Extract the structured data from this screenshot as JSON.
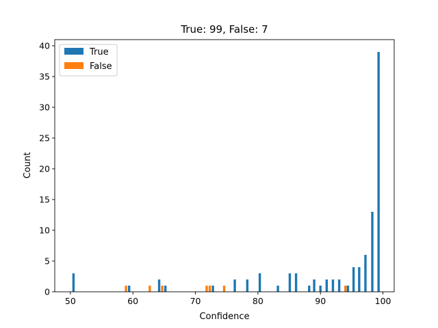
{
  "chart_data": {
    "type": "bar",
    "title": "True: 99, False: 7",
    "xlabel": "Confidence",
    "ylabel": "Count",
    "xlim": [
      47.5,
      101.8
    ],
    "ylim": [
      0,
      41
    ],
    "xticks": [
      50,
      60,
      70,
      80,
      90,
      100
    ],
    "yticks": [
      0,
      5,
      10,
      15,
      20,
      25,
      30,
      35,
      40
    ],
    "grid": false,
    "legend_position": "upper-left",
    "series": [
      {
        "name": "True",
        "color": "#1f77b4",
        "points": [
          {
            "x": 50.5,
            "y": 3
          },
          {
            "x": 59.4,
            "y": 1
          },
          {
            "x": 64.2,
            "y": 2
          },
          {
            "x": 65.2,
            "y": 1
          },
          {
            "x": 72.8,
            "y": 1
          },
          {
            "x": 76.3,
            "y": 2
          },
          {
            "x": 78.3,
            "y": 2
          },
          {
            "x": 80.3,
            "y": 3
          },
          {
            "x": 83.2,
            "y": 1
          },
          {
            "x": 85.1,
            "y": 3
          },
          {
            "x": 86.1,
            "y": 3
          },
          {
            "x": 88.2,
            "y": 1
          },
          {
            "x": 89.0,
            "y": 2
          },
          {
            "x": 90.0,
            "y": 1
          },
          {
            "x": 91.0,
            "y": 2
          },
          {
            "x": 92.0,
            "y": 2
          },
          {
            "x": 93.0,
            "y": 2
          },
          {
            "x": 94.4,
            "y": 1
          },
          {
            "x": 95.3,
            "y": 4
          },
          {
            "x": 96.2,
            "y": 4
          },
          {
            "x": 97.2,
            "y": 6
          },
          {
            "x": 98.3,
            "y": 13
          },
          {
            "x": 99.3,
            "y": 39
          }
        ]
      },
      {
        "name": "False",
        "color": "#ff7f0e",
        "points": [
          {
            "x": 58.9,
            "y": 1
          },
          {
            "x": 62.7,
            "y": 1
          },
          {
            "x": 64.7,
            "y": 1
          },
          {
            "x": 71.8,
            "y": 1
          },
          {
            "x": 72.3,
            "y": 1
          },
          {
            "x": 74.6,
            "y": 1
          },
          {
            "x": 94.0,
            "y": 1
          }
        ]
      }
    ]
  }
}
